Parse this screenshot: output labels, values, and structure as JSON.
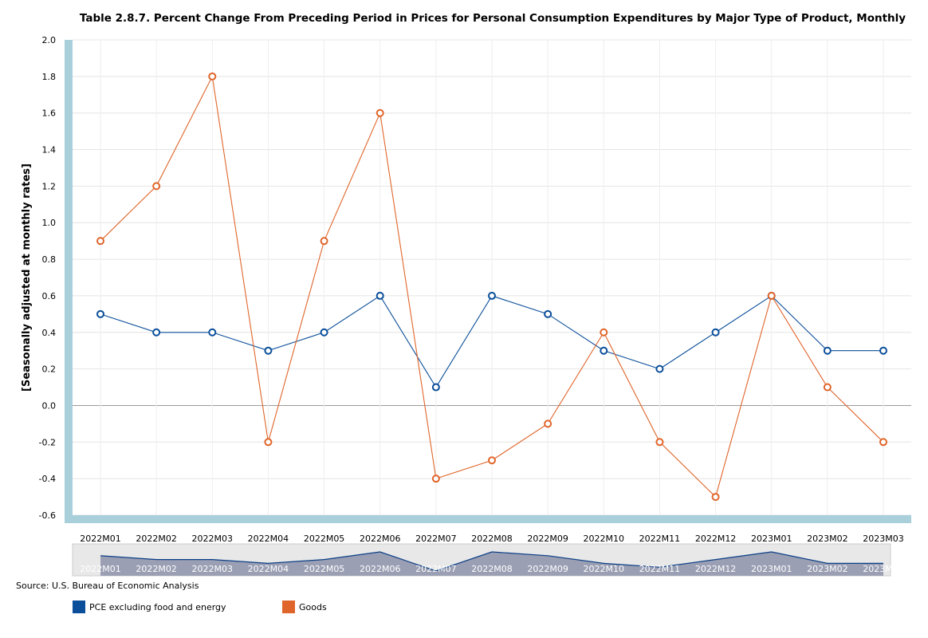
{
  "chart_data": {
    "type": "line",
    "title": "Table 2.8.7. Percent Change From Preceding Period in Prices for Personal Consumption Expenditures by Major Type of Product, Monthly",
    "ylabel": "[Seasonally adjusted at monthly rates]",
    "xlabel": "",
    "ylim": [
      -0.6,
      2.0
    ],
    "yticks": [
      "2.0",
      "1.8",
      "1.6",
      "1.4",
      "1.2",
      "1.0",
      "0.8",
      "0.6",
      "0.4",
      "0.2",
      "0.0",
      "-0.2",
      "-0.4",
      "-0.6"
    ],
    "categories": [
      "2022M01",
      "2022M02",
      "2022M03",
      "2022M04",
      "2022M05",
      "2022M06",
      "2022M07",
      "2022M08",
      "2022M09",
      "2022M10",
      "2022M11",
      "2022M12",
      "2023M01",
      "2023M02",
      "2023M03"
    ],
    "series": [
      {
        "name": "PCE excluding food and energy",
        "color": "#0b4f9a",
        "values": [
          0.5,
          0.4,
          0.4,
          0.3,
          0.4,
          0.6,
          0.1,
          0.6,
          0.5,
          0.3,
          0.2,
          0.4,
          0.6,
          0.3,
          0.3
        ]
      },
      {
        "name": "Goods",
        "color": "#e0652a",
        "values": [
          0.9,
          1.2,
          1.8,
          -0.2,
          0.9,
          1.6,
          -0.4,
          -0.3,
          -0.1,
          0.4,
          -0.2,
          -0.5,
          0.6,
          0.1,
          -0.2
        ]
      }
    ],
    "grid": true,
    "legend_position": "bottom-left"
  },
  "source": "Source: U.S. Bureau of Economic Analysis"
}
